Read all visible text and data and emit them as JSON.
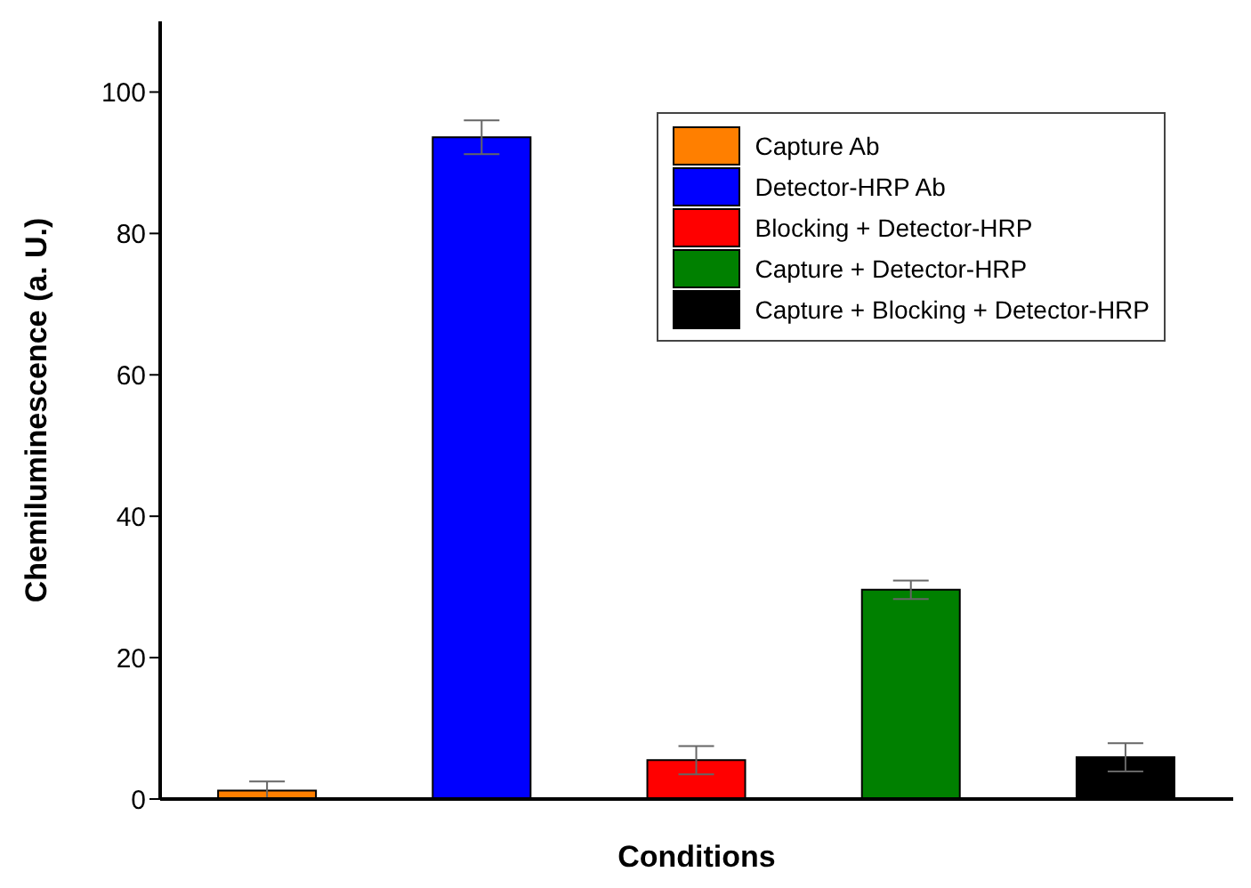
{
  "chart_data": {
    "type": "bar",
    "xlabel": "Conditions",
    "ylabel": "Chemiluminescence (a. U.)",
    "categories": [
      null,
      null,
      null,
      null,
      null
    ],
    "stacked": true,
    "series": [
      {
        "name": "Capture Ab",
        "color": "#ff7f00",
        "values": [
          1.2,
          null,
          null,
          null,
          null
        ],
        "errors": [
          1.3,
          null,
          null,
          null,
          null
        ]
      },
      {
        "name": "Detector-HRP Ab",
        "color": "#0000ff",
        "values": [
          null,
          93.6,
          null,
          null,
          null
        ],
        "errors": [
          null,
          2.4,
          null,
          null,
          null
        ]
      },
      {
        "name": "Blocking + Detector-HRP",
        "color": "#ff0000",
        "values": [
          null,
          null,
          5.5,
          null,
          null
        ],
        "errors": [
          null,
          null,
          2,
          null,
          null
        ]
      },
      {
        "name": "Capture + Detector-HRP",
        "color": "#008000",
        "values": [
          null,
          null,
          null,
          29.6,
          null
        ],
        "errors": [
          null,
          null,
          null,
          1.3,
          null
        ]
      },
      {
        "name": "Capture + Blocking + Detector-HRP",
        "color": "#000000",
        "values": [
          null,
          null,
          null,
          null,
          5.9
        ],
        "errors": [
          null,
          null,
          null,
          null,
          2
        ]
      }
    ],
    "ylim": [
      0,
      110
    ],
    "yticks": [
      0,
      20,
      40,
      60,
      80,
      100
    ],
    "grid": false,
    "legend": "top right"
  }
}
